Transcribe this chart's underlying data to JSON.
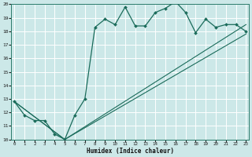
{
  "xlabel": "Humidex (Indice chaleur)",
  "xlim": [
    0,
    23
  ],
  "ylim": [
    10,
    20
  ],
  "xticks": [
    0,
    1,
    2,
    3,
    4,
    5,
    6,
    7,
    8,
    9,
    10,
    11,
    12,
    13,
    14,
    15,
    16,
    17,
    18,
    19,
    20,
    21,
    22,
    23
  ],
  "yticks": [
    10,
    11,
    12,
    13,
    14,
    15,
    16,
    17,
    18,
    19,
    20
  ],
  "bg_color": "#cce8e8",
  "line_color": "#1a6b5a",
  "grid_color": "#ffffff",
  "line1_x": [
    0,
    1,
    2,
    3,
    4,
    5,
    6,
    7,
    8,
    9,
    10,
    11,
    12,
    13,
    14,
    15,
    16,
    17,
    18,
    19,
    20,
    21,
    22,
    23
  ],
  "line1_y": [
    12.8,
    11.8,
    11.4,
    11.4,
    10.4,
    10.0,
    11.8,
    13.0,
    18.3,
    18.9,
    18.5,
    19.8,
    18.4,
    18.4,
    19.4,
    19.7,
    20.2,
    19.4,
    17.9,
    18.9,
    18.3,
    18.5,
    18.5,
    18.0
  ],
  "line2_x": [
    0,
    5,
    23
  ],
  "line2_y": [
    12.8,
    10.0,
    18.5
  ],
  "line3_x": [
    0,
    5,
    23
  ],
  "line3_y": [
    12.8,
    10.0,
    17.8
  ]
}
